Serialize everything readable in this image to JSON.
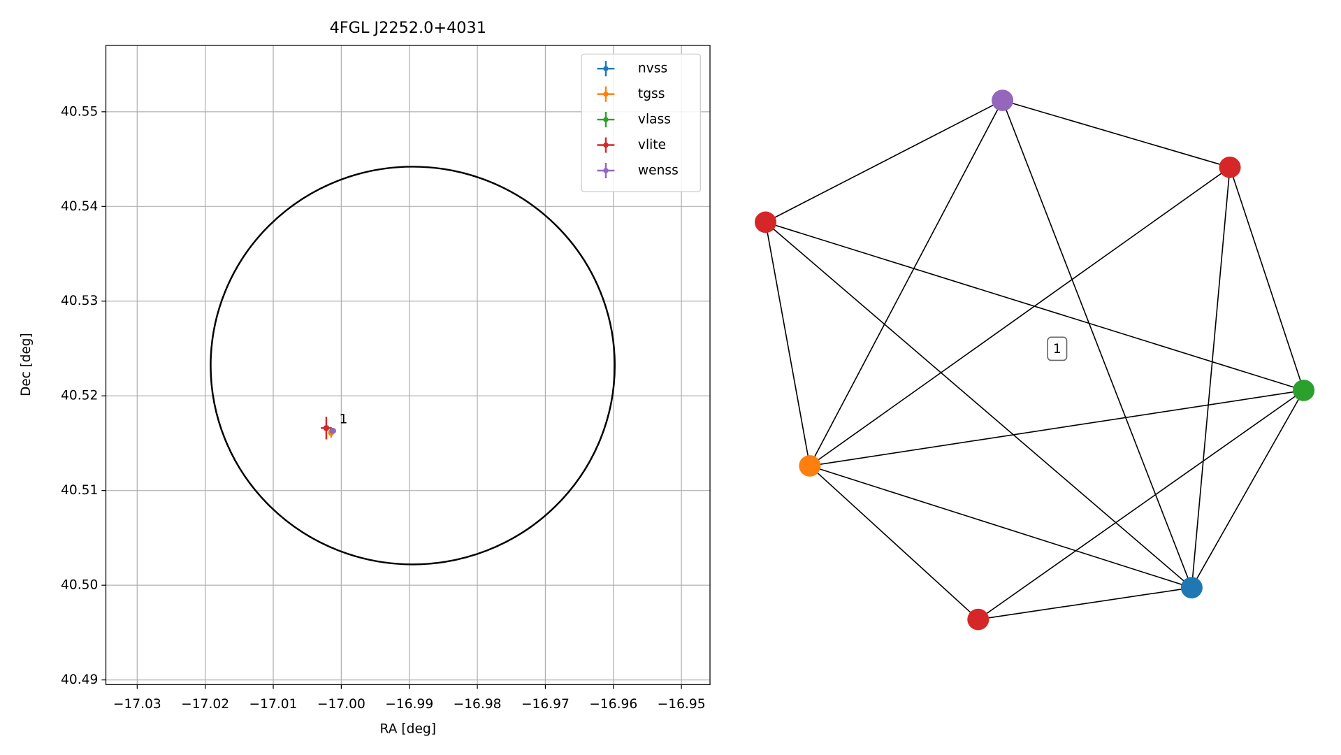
{
  "chart_data": [
    {
      "type": "scatter",
      "title": "4FGL J2252.0+4031",
      "xlabel": "RA [deg]",
      "ylabel": "Dec [deg]",
      "xlim": [
        -17.0346,
        -16.9458
      ],
      "ylim": [
        40.4895,
        40.557
      ],
      "xticks": [
        {
          "value": -17.03,
          "label": "−17.03"
        },
        {
          "value": -17.02,
          "label": "−17.02"
        },
        {
          "value": -17.01,
          "label": "−17.01"
        },
        {
          "value": -17.0,
          "label": "−17.00"
        },
        {
          "value": -16.99,
          "label": "−16.99"
        },
        {
          "value": -16.98,
          "label": "−16.98"
        },
        {
          "value": -16.97,
          "label": "−16.97"
        },
        {
          "value": -16.96,
          "label": "−16.96"
        },
        {
          "value": -16.95,
          "label": "−16.95"
        }
      ],
      "yticks": [
        40.49,
        {
          "value": 40.5,
          "label": "40.50"
        },
        40.51,
        40.52,
        40.53,
        40.54,
        40.55
      ],
      "grid": true,
      "legend": "upper right",
      "series": [
        {
          "name": "nvss",
          "color": "#1f77b4",
          "x": [
            -17.0013
          ],
          "y": [
            40.5163
          ],
          "xerr": [
            0.0002
          ],
          "yerr": [
            0.0002
          ]
        },
        {
          "name": "tgss",
          "color": "#ff7f0e",
          "x": [
            -17.0015
          ],
          "y": [
            40.5161
          ],
          "xerr": [
            0.0003
          ],
          "yerr": [
            0.0005
          ]
        },
        {
          "name": "vlass",
          "color": "#2ca02c",
          "x": [
            -17.0013
          ],
          "y": [
            40.5163
          ],
          "xerr": [
            0.0001
          ],
          "yerr": [
            0.0001
          ]
        },
        {
          "name": "vlite",
          "color": "#d62728",
          "x": [
            -17.0022
          ],
          "y": [
            40.5166
          ],
          "xerr": [
            0.0008
          ],
          "yerr": [
            0.0012
          ]
        },
        {
          "name": "wenss",
          "color": "#9467bd",
          "x": [
            -17.0012
          ],
          "y": [
            40.5163
          ],
          "xerr": [
            0.0002
          ],
          "yerr": [
            0.0002
          ]
        }
      ],
      "circle": {
        "x": -16.9895,
        "y": 40.5232,
        "rx": 0.0297,
        "ry": 0.021
      },
      "annotation": {
        "text": "1",
        "x": -17.0003,
        "y": 40.5175
      }
    },
    {
      "type": "network",
      "label": "1",
      "nodes": [
        {
          "color": "#9467bd"
        },
        {
          "color": "#d62728"
        },
        {
          "color": "#2ca02c"
        },
        {
          "color": "#1f77b4"
        },
        {
          "color": "#d62728"
        },
        {
          "color": "#ff7f0e"
        },
        {
          "color": "#d62728"
        }
      ],
      "edges": [
        [
          0,
          1
        ],
        [
          0,
          6
        ],
        [
          0,
          5
        ],
        [
          0,
          3
        ],
        [
          1,
          2
        ],
        [
          1,
          3
        ],
        [
          1,
          5
        ],
        [
          6,
          5
        ],
        [
          6,
          2
        ],
        [
          6,
          3
        ],
        [
          5,
          2
        ],
        [
          5,
          3
        ],
        [
          5,
          4
        ],
        [
          2,
          3
        ],
        [
          2,
          4
        ],
        [
          3,
          4
        ]
      ]
    }
  ]
}
